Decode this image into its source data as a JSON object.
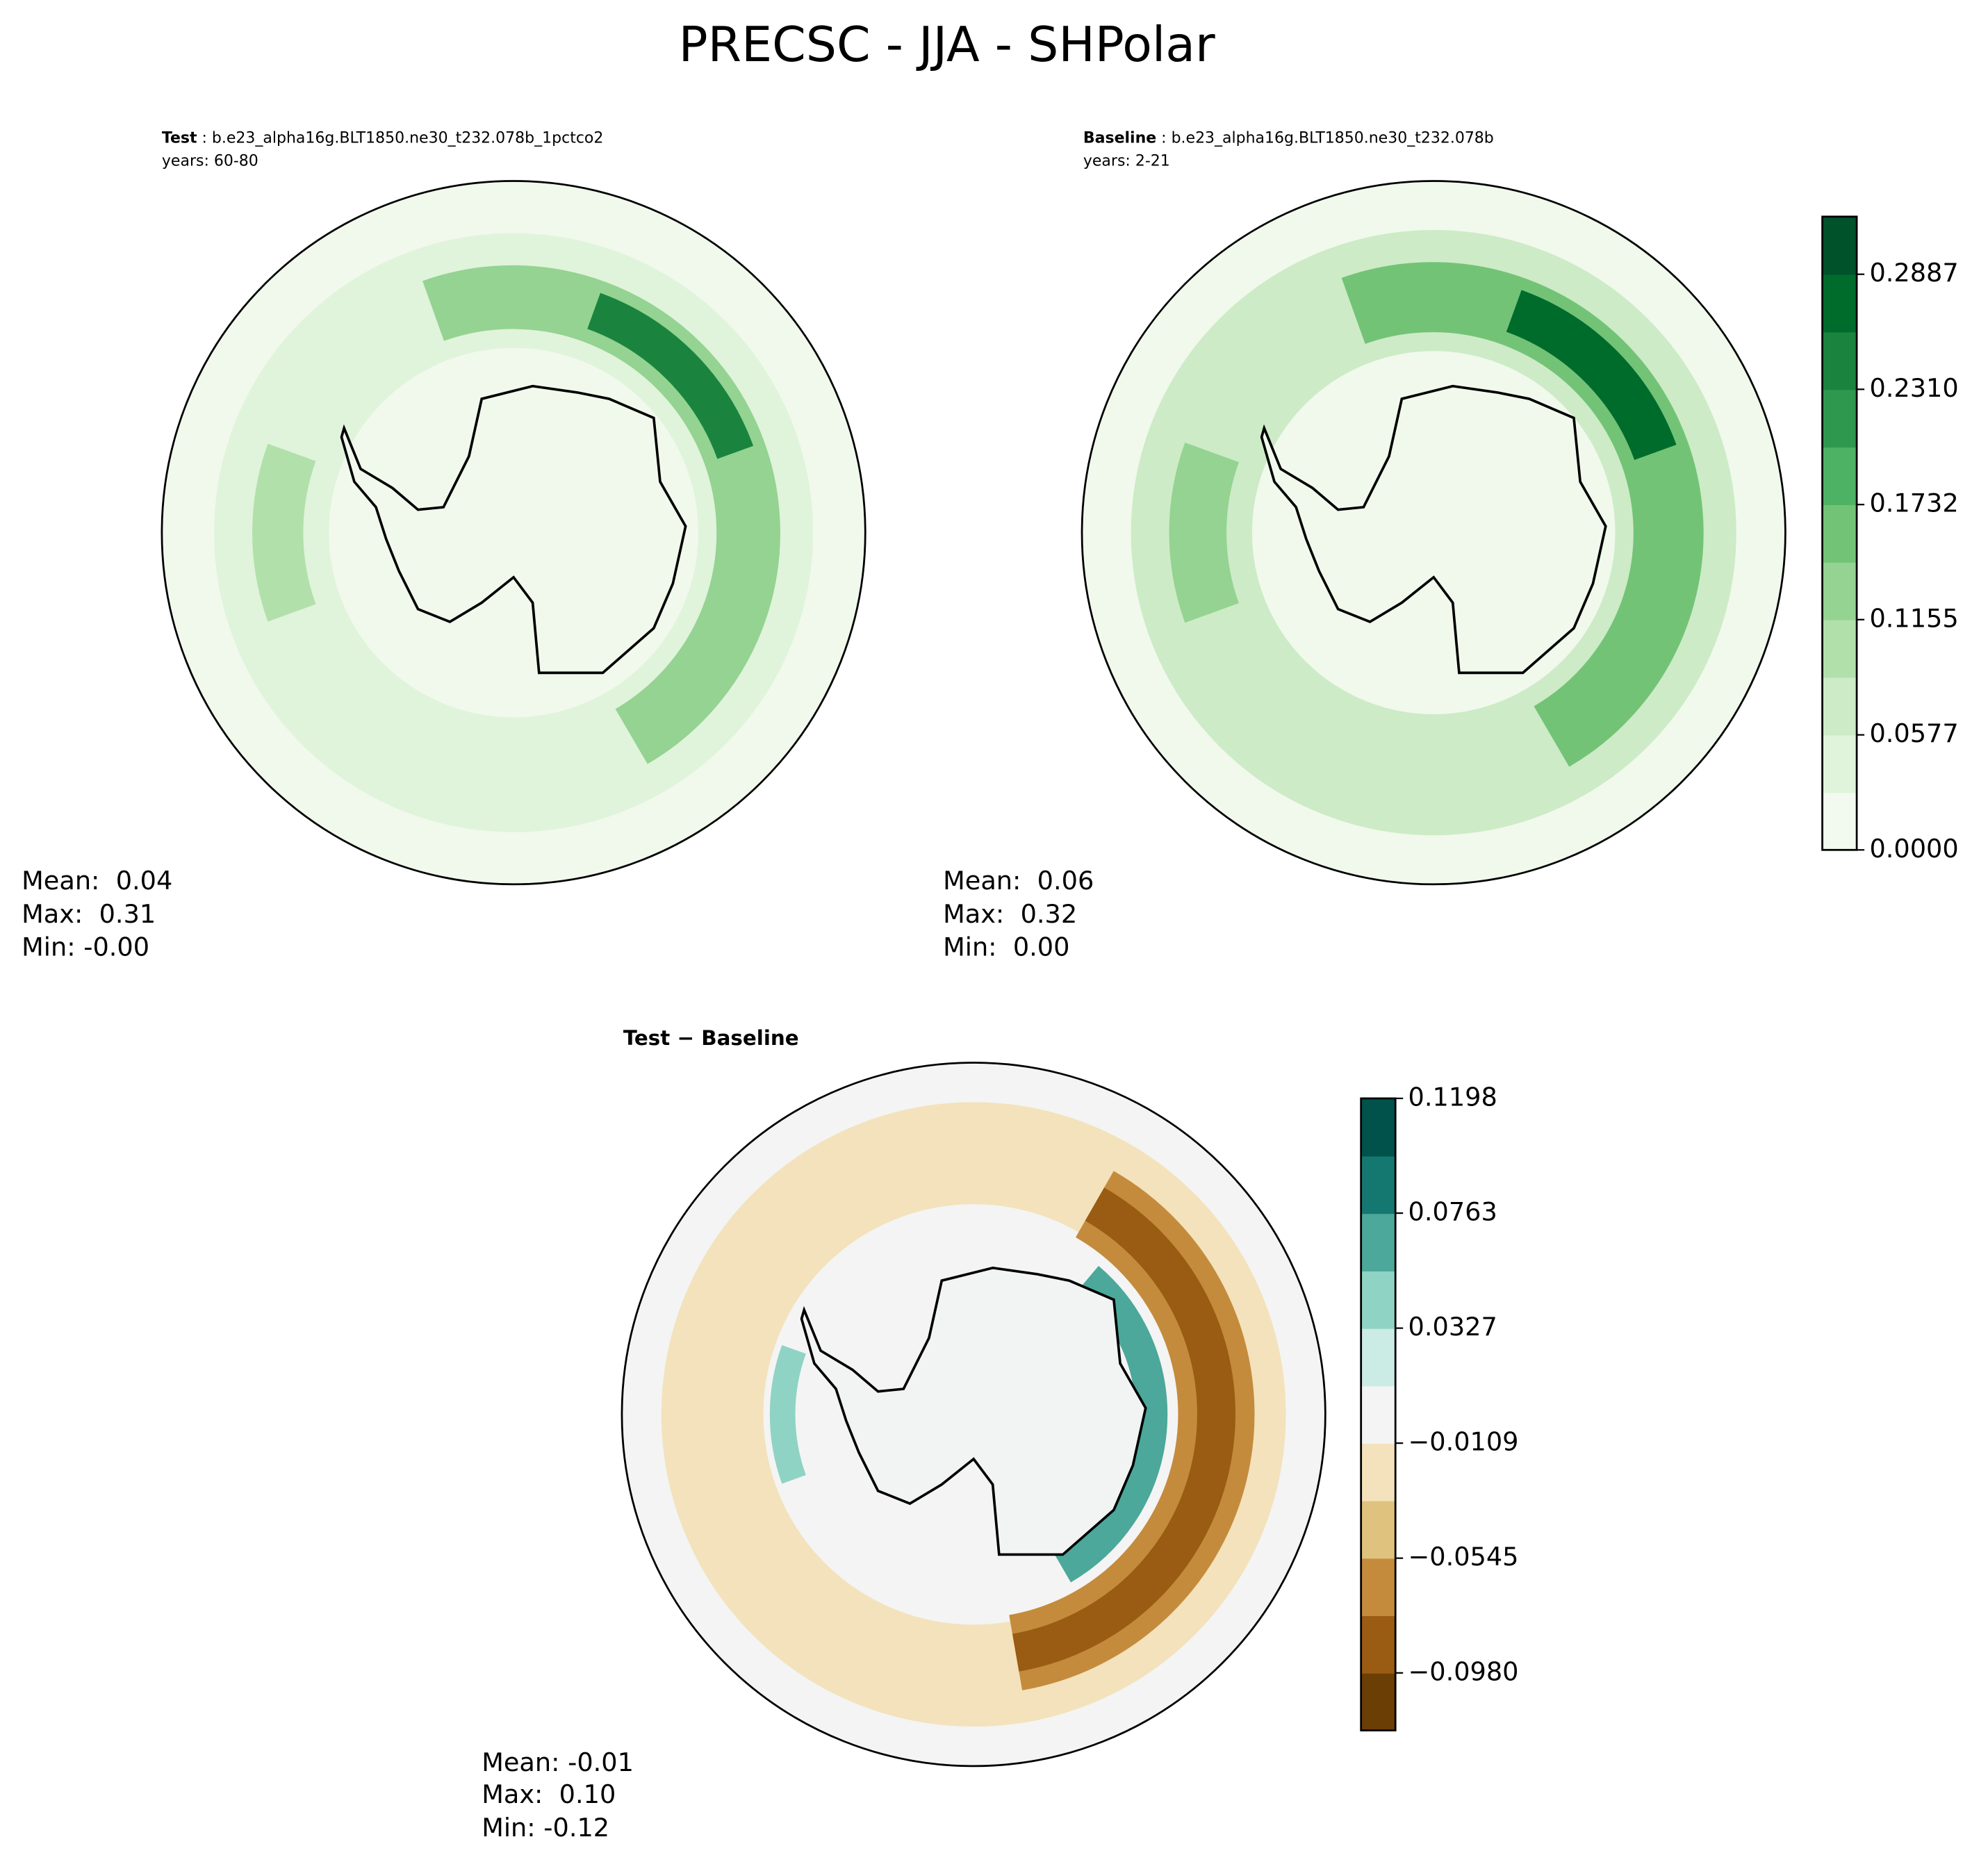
{
  "title": "PRECSC - JJA - SHPolar",
  "chart_data": [
    {
      "type": "contour",
      "label": "Test",
      "case": " : b.e23_alpha16g.BLT1850.ne30_t232.078b_1pctco2",
      "years": "years: 60-80",
      "stats": [
        "Mean:  0.04",
        "Max:  0.31",
        "Min: -0.00"
      ]
    },
    {
      "type": "contour",
      "label": "Baseline",
      "case": " : b.e23_alpha16g.BLT1850.ne30_t232.078b",
      "years": "years: 2-21",
      "stats": [
        "Mean:  0.06",
        "Max:  0.32",
        "Min:  0.00"
      ],
      "colorbar": {
        "ylim": [
          0,
          0.3176
        ],
        "yticks": [
          {
            "value": 0,
            "label": "0.0000"
          },
          0.0577,
          0.1155,
          0.1732,
          {
            "value": 0.231,
            "label": "0.2310"
          },
          0.2887
        ],
        "colors": [
          "#f2faef",
          "#e0f3db",
          "#cdebc6",
          "#b2e0ab",
          "#94d391",
          "#73c377",
          "#4eb264",
          "#2f984f",
          "#1a843f",
          "#006c2c",
          "#00522b"
        ]
      }
    },
    {
      "type": "contour",
      "label": "Test − Baseline",
      "stats": [
        "Mean: -0.01",
        "Max:  0.10",
        "Min: -0.12"
      ],
      "colorbar": {
        "ylim": [
          -0.1198,
          0.1198
        ],
        "yticks": [
          {
            "value": -0.098,
            "label": "−0.0980"
          },
          {
            "value": -0.0545,
            "label": "−0.0545"
          },
          {
            "value": -0.0109,
            "label": "−0.0109"
          },
          0.0327,
          0.0763,
          0.1198
        ],
        "colors": [
          "#6b3e06",
          "#9a5b12",
          "#c48b3c",
          "#dfc27d",
          "#f3e2bb",
          "#f3f4f3",
          "#cbebe5",
          "#8fd3c4",
          "#4ba89a",
          "#147870",
          "#00524a"
        ]
      }
    }
  ]
}
